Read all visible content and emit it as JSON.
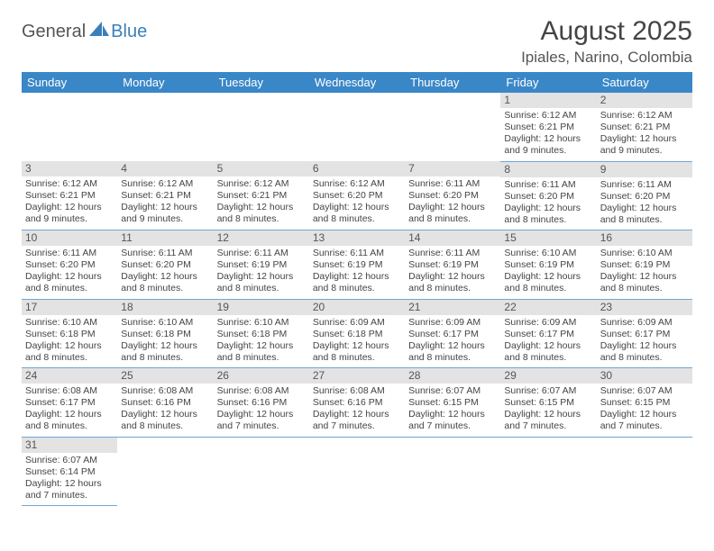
{
  "logo": {
    "text1": "General",
    "text2": "Blue"
  },
  "title": "August 2025",
  "location": "Ipiales, Narino, Colombia",
  "weekday_header_bg": "#3a87c8",
  "weekday_header_fg": "#ffffff",
  "daynum_bg": "#e3e3e3",
  "row_border_color": "#6fa6d4",
  "weekdays": [
    "Sunday",
    "Monday",
    "Tuesday",
    "Wednesday",
    "Thursday",
    "Friday",
    "Saturday"
  ],
  "weeks": [
    [
      null,
      null,
      null,
      null,
      null,
      {
        "n": "1",
        "sr": "6:12 AM",
        "ss": "6:21 PM",
        "dl": "12 hours and 9 minutes."
      },
      {
        "n": "2",
        "sr": "6:12 AM",
        "ss": "6:21 PM",
        "dl": "12 hours and 9 minutes."
      }
    ],
    [
      {
        "n": "3",
        "sr": "6:12 AM",
        "ss": "6:21 PM",
        "dl": "12 hours and 9 minutes."
      },
      {
        "n": "4",
        "sr": "6:12 AM",
        "ss": "6:21 PM",
        "dl": "12 hours and 9 minutes."
      },
      {
        "n": "5",
        "sr": "6:12 AM",
        "ss": "6:21 PM",
        "dl": "12 hours and 8 minutes."
      },
      {
        "n": "6",
        "sr": "6:12 AM",
        "ss": "6:20 PM",
        "dl": "12 hours and 8 minutes."
      },
      {
        "n": "7",
        "sr": "6:11 AM",
        "ss": "6:20 PM",
        "dl": "12 hours and 8 minutes."
      },
      {
        "n": "8",
        "sr": "6:11 AM",
        "ss": "6:20 PM",
        "dl": "12 hours and 8 minutes."
      },
      {
        "n": "9",
        "sr": "6:11 AM",
        "ss": "6:20 PM",
        "dl": "12 hours and 8 minutes."
      }
    ],
    [
      {
        "n": "10",
        "sr": "6:11 AM",
        "ss": "6:20 PM",
        "dl": "12 hours and 8 minutes."
      },
      {
        "n": "11",
        "sr": "6:11 AM",
        "ss": "6:20 PM",
        "dl": "12 hours and 8 minutes."
      },
      {
        "n": "12",
        "sr": "6:11 AM",
        "ss": "6:19 PM",
        "dl": "12 hours and 8 minutes."
      },
      {
        "n": "13",
        "sr": "6:11 AM",
        "ss": "6:19 PM",
        "dl": "12 hours and 8 minutes."
      },
      {
        "n": "14",
        "sr": "6:11 AM",
        "ss": "6:19 PM",
        "dl": "12 hours and 8 minutes."
      },
      {
        "n": "15",
        "sr": "6:10 AM",
        "ss": "6:19 PM",
        "dl": "12 hours and 8 minutes."
      },
      {
        "n": "16",
        "sr": "6:10 AM",
        "ss": "6:19 PM",
        "dl": "12 hours and 8 minutes."
      }
    ],
    [
      {
        "n": "17",
        "sr": "6:10 AM",
        "ss": "6:18 PM",
        "dl": "12 hours and 8 minutes."
      },
      {
        "n": "18",
        "sr": "6:10 AM",
        "ss": "6:18 PM",
        "dl": "12 hours and 8 minutes."
      },
      {
        "n": "19",
        "sr": "6:10 AM",
        "ss": "6:18 PM",
        "dl": "12 hours and 8 minutes."
      },
      {
        "n": "20",
        "sr": "6:09 AM",
        "ss": "6:18 PM",
        "dl": "12 hours and 8 minutes."
      },
      {
        "n": "21",
        "sr": "6:09 AM",
        "ss": "6:17 PM",
        "dl": "12 hours and 8 minutes."
      },
      {
        "n": "22",
        "sr": "6:09 AM",
        "ss": "6:17 PM",
        "dl": "12 hours and 8 minutes."
      },
      {
        "n": "23",
        "sr": "6:09 AM",
        "ss": "6:17 PM",
        "dl": "12 hours and 8 minutes."
      }
    ],
    [
      {
        "n": "24",
        "sr": "6:08 AM",
        "ss": "6:17 PM",
        "dl": "12 hours and 8 minutes."
      },
      {
        "n": "25",
        "sr": "6:08 AM",
        "ss": "6:16 PM",
        "dl": "12 hours and 8 minutes."
      },
      {
        "n": "26",
        "sr": "6:08 AM",
        "ss": "6:16 PM",
        "dl": "12 hours and 7 minutes."
      },
      {
        "n": "27",
        "sr": "6:08 AM",
        "ss": "6:16 PM",
        "dl": "12 hours and 7 minutes."
      },
      {
        "n": "28",
        "sr": "6:07 AM",
        "ss": "6:15 PM",
        "dl": "12 hours and 7 minutes."
      },
      {
        "n": "29",
        "sr": "6:07 AM",
        "ss": "6:15 PM",
        "dl": "12 hours and 7 minutes."
      },
      {
        "n": "30",
        "sr": "6:07 AM",
        "ss": "6:15 PM",
        "dl": "12 hours and 7 minutes."
      }
    ],
    [
      {
        "n": "31",
        "sr": "6:07 AM",
        "ss": "6:14 PM",
        "dl": "12 hours and 7 minutes."
      },
      null,
      null,
      null,
      null,
      null,
      null
    ]
  ],
  "labels": {
    "sunrise": "Sunrise: ",
    "sunset": "Sunset: ",
    "daylight": "Daylight: "
  }
}
